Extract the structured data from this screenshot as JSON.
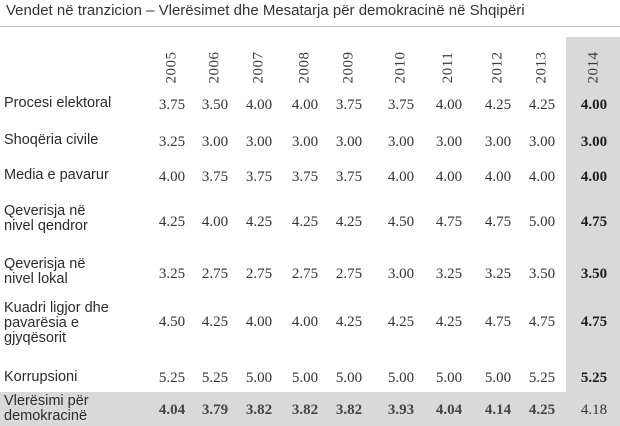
{
  "title": "Vendet në tranzicion – Vlerësimet dhe Mesatarja për demokracinë në Shqipëri",
  "years": [
    "2005",
    "2006",
    "2007",
    "2008",
    "2009",
    "2010",
    "2011",
    "2012",
    "2013",
    "2014"
  ],
  "rows": [
    {
      "label": "Procesi elektoral",
      "values": [
        "3.75",
        "3.50",
        "4.00",
        "4.00",
        "3.75",
        "3.75",
        "4.00",
        "4.25",
        "4.25",
        "4.00"
      ]
    },
    {
      "label": "Shoqëria civile",
      "values": [
        "3.25",
        "3.00",
        "3.00",
        "3.00",
        "3.00",
        "3.00",
        "3.00",
        "3.00",
        "3.00",
        "3.00"
      ]
    },
    {
      "label": "Media e pavarur",
      "values": [
        "4.00",
        "3.75",
        "3.75",
        "3.75",
        "3.75",
        "4.00",
        "4.00",
        "4.00",
        "4.00",
        "4.00"
      ]
    },
    {
      "label": "Qeverisja në nivel qendror",
      "values": [
        "4.25",
        "4.00",
        "4.25",
        "4.25",
        "4.25",
        "4.50",
        "4.75",
        "4.75",
        "5.00",
        "4.75"
      ]
    },
    {
      "label": "Qeverisja në nivel lokal",
      "values": [
        "3.25",
        "2.75",
        "2.75",
        "2.75",
        "2.75",
        "3.00",
        "3.25",
        "3.25",
        "3.50",
        "3.50"
      ]
    },
    {
      "label": "Kuadri ligjor dhe pavarësia e gjyqësorit",
      "values": [
        "4.50",
        "4.25",
        "4.00",
        "4.00",
        "4.25",
        "4.25",
        "4.25",
        "4.75",
        "4.75",
        "4.75"
      ]
    },
    {
      "label": "Korrupsioni",
      "values": [
        "5.25",
        "5.25",
        "5.00",
        "5.00",
        "5.00",
        "5.00",
        "5.00",
        "5.00",
        "5.25",
        "5.25"
      ]
    }
  ],
  "average": {
    "label": "Vlerësimi për demokracinë",
    "values": [
      "4.04",
      "3.79",
      "3.82",
      "3.82",
      "3.82",
      "3.93",
      "4.04",
      "4.14",
      "4.25",
      "4.18"
    ]
  },
  "highlight_color": "#d9d9d9"
}
